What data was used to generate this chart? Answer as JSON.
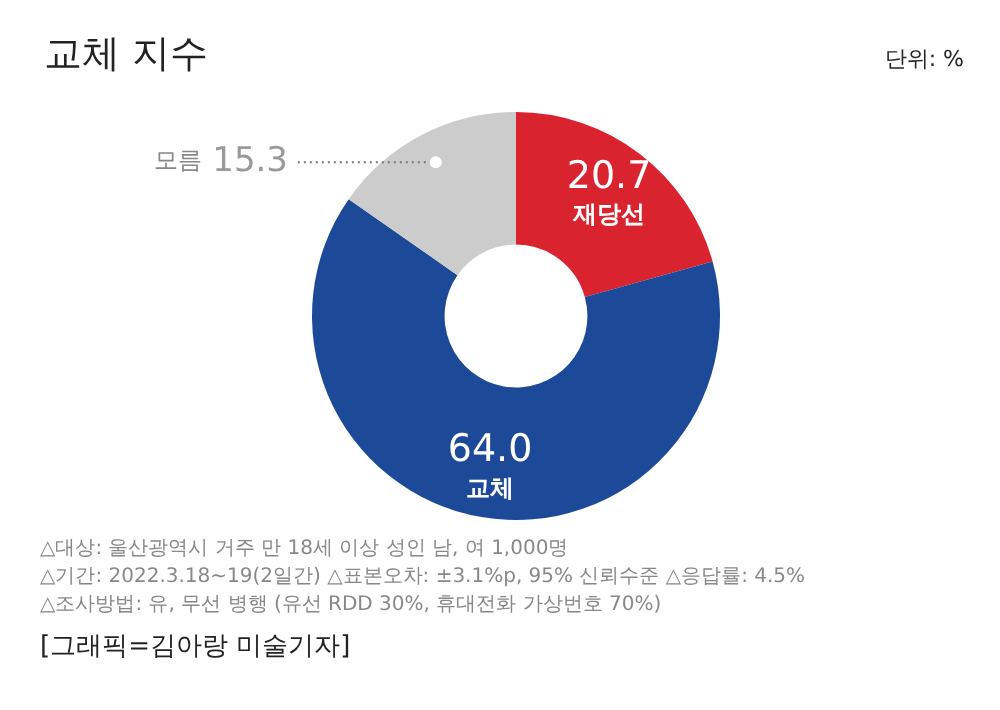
{
  "chart_data": {
    "type": "donut",
    "title": "교체 지수",
    "subtitle": "단위: %",
    "categories": [
      "재당선",
      "교체",
      "모름"
    ],
    "values": [
      20.7,
      64.0,
      15.3
    ],
    "value_labels": [
      "20.7",
      "64.0",
      "15.3"
    ],
    "colors": [
      "#d9232e",
      "#1d4a98",
      "#cccccc"
    ],
    "legend": false,
    "annotations": [
      "△대상: 울산광역시 거주 만 18세 이상 성인 남, 여 1,000명",
      "△기간: 2022.3.18~19(2일간) △표본오차: ±3.1%p, 95% 신뢰수준 △응답률: 4.5%",
      "△조사방법: 유, 무선 병행 (유선 RDD 30%, 휴대전화 가상번호 70%)",
      "[그래픽=김아랑 미술기자]"
    ]
  }
}
